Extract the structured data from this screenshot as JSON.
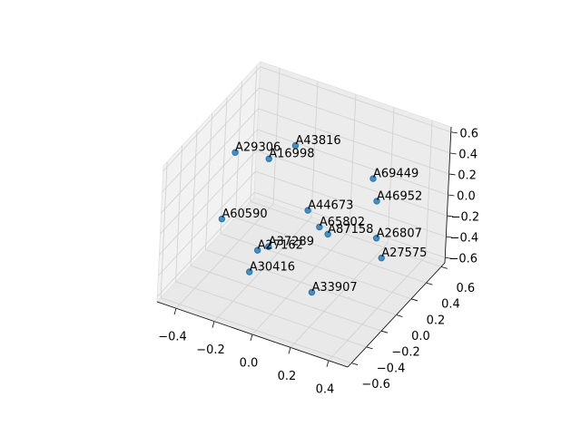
{
  "chart_data": {
    "type": "scatter3d",
    "labels": [
      "A29306",
      "A43816",
      "A16998",
      "A69449",
      "A46952",
      "A44673",
      "A60590",
      "A65802",
      "A87158",
      "A26807",
      "A37289",
      "A27162",
      "A27575",
      "A30416",
      "A33907"
    ],
    "x": [
      -0.36,
      -0.12,
      -0.25,
      0.19,
      0.24,
      0.0,
      -0.31,
      0.06,
      0.12,
      0.28,
      -0.07,
      -0.1,
      0.3,
      -0.1,
      0.15
    ],
    "y": [
      -0.03,
      0.16,
      0.15,
      0.43,
      0.36,
      0.05,
      -0.31,
      0.06,
      0.02,
      0.27,
      -0.29,
      -0.36,
      0.3,
      -0.46,
      -0.25
    ],
    "z": [
      0.39,
      0.46,
      0.26,
      0.13,
      0.0,
      0.0,
      0.0,
      -0.13,
      -0.13,
      -0.26,
      -0.13,
      -0.13,
      -0.46,
      -0.26,
      -0.46
    ],
    "color": "#1f77b4",
    "xlim": [
      -0.5,
      0.5
    ],
    "ylim": [
      -0.65,
      0.65
    ],
    "zlim": [
      -0.65,
      0.65
    ],
    "xticks": [
      {
        "value": -0.4,
        "label": "−0.4"
      },
      {
        "value": -0.2,
        "label": "−0.2"
      },
      {
        "value": 0.0,
        "label": "0.0"
      },
      0.2,
      0.4
    ],
    "yticks": [
      {
        "value": -0.6,
        "label": "−0.6"
      },
      {
        "value": -0.4,
        "label": "−0.4"
      },
      {
        "value": -0.2,
        "label": "−0.2"
      },
      {
        "value": 0.0,
        "label": "0.0"
      },
      0.2,
      0.4,
      0.6
    ],
    "zticks": [
      {
        "value": -0.6,
        "label": "−0.6"
      },
      {
        "value": -0.4,
        "label": "−0.4"
      },
      {
        "value": -0.2,
        "label": "−0.2"
      },
      {
        "value": 0.0,
        "label": "0.0"
      },
      0.2,
      0.4,
      0.6
    ],
    "grid": true
  }
}
